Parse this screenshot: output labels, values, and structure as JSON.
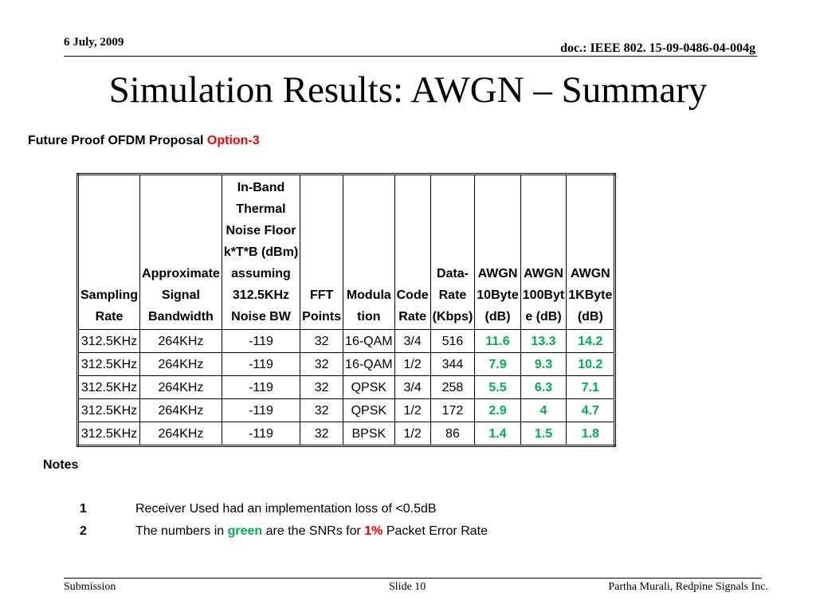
{
  "header": {
    "date": "6 July, 2009",
    "doc_id": "doc.: IEEE 802. 15-09-0486-04-004g"
  },
  "title": "Simulation Results: AWGN – Summary",
  "subtitle": {
    "text": "Future Proof OFDM Proposal",
    "option": "Option-3"
  },
  "table": {
    "headers": [
      [
        "Sampling",
        "Rate"
      ],
      [
        "Approximate",
        "Signal",
        "Bandwidth"
      ],
      [
        "In-Band",
        "Thermal",
        "Noise Floor",
        "k*T*B (dBm)",
        "assuming",
        "312.5KHz",
        "Noise BW"
      ],
      [
        "FFT",
        "Points"
      ],
      [
        "Modula",
        "tion"
      ],
      [
        "Code",
        "Rate"
      ],
      [
        "Data-",
        "Rate",
        "(Kbps)"
      ],
      [
        "AWGN",
        "10Byte",
        "(dB)"
      ],
      [
        "AWGN",
        "100Byt",
        "e (dB)"
      ],
      [
        "AWGN",
        "1KByte",
        "(dB)"
      ]
    ],
    "rows": [
      [
        "312.5KHz",
        "264KHz",
        "-119",
        "32",
        "16-QAM",
        "3/4",
        "516",
        "11.6",
        "13.3",
        "14.2"
      ],
      [
        "312.5KHz",
        "264KHz",
        "-119",
        "32",
        "16-QAM",
        "1/2",
        "344",
        "7.9",
        "9.3",
        "10.2"
      ],
      [
        "312.5KHz",
        "264KHz",
        "-119",
        "32",
        "QPSK",
        "3/4",
        "258",
        "5.5",
        "6.3",
        "7.1"
      ],
      [
        "312.5KHz",
        "264KHz",
        "-119",
        "32",
        "QPSK",
        "1/2",
        "172",
        "2.9",
        "4",
        "4.7"
      ],
      [
        "312.5KHz",
        "264KHz",
        "-119",
        "32",
        "BPSK",
        "1/2",
        "86",
        "1.4",
        "1.5",
        "1.8"
      ]
    ],
    "snr_color": "#00b050"
  },
  "notes": {
    "title": "Notes",
    "items": [
      {
        "num": "1",
        "text": "Receiver Used had an implementation loss of <0.5dB"
      },
      {
        "num": "2",
        "pre": "The numbers in",
        "green": "green",
        "mid": "are the SNRs for",
        "red": "1%",
        "post": "Packet Error Rate"
      }
    ]
  },
  "footer": {
    "left": "Submission",
    "center": "Slide 10",
    "right": "Partha Murali, Redpine Signals Inc."
  }
}
